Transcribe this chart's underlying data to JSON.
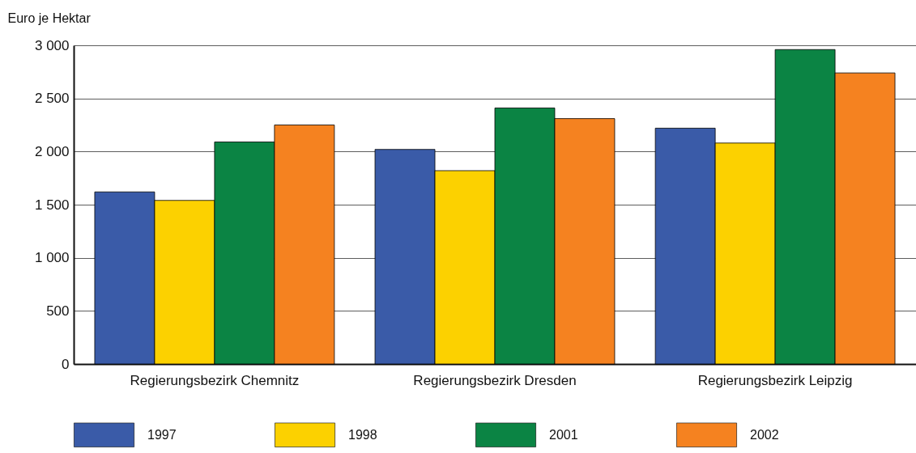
{
  "chart_data": {
    "type": "bar",
    "ylabel": "Euro je Hektar",
    "categories": [
      "Regierungsbezirk Chemnitz",
      "Regierungsbezirk Dresden",
      "Regierungsbezirk Leipzig"
    ],
    "series": [
      {
        "name": "1997",
        "color": "#3a5ba8",
        "values": [
          1620,
          2020,
          2220
        ]
      },
      {
        "name": "1998",
        "color": "#fcd100",
        "values": [
          1540,
          1820,
          2080
        ]
      },
      {
        "name": "2001",
        "color": "#0b8444",
        "values": [
          2090,
          2410,
          2960
        ]
      },
      {
        "name": "2002",
        "color": "#f58220",
        "values": [
          2250,
          2310,
          2740
        ]
      }
    ],
    "ylim": [
      0,
      3000
    ],
    "yticks": [
      0,
      500,
      {
        "value": 1000,
        "label": "1 000"
      },
      {
        "value": 1500,
        "label": "1 500"
      },
      {
        "value": 2000,
        "label": "2 000"
      },
      {
        "value": 2500,
        "label": "2 500"
      },
      {
        "value": 3000,
        "label": "3 000"
      }
    ],
    "grid": "y",
    "legend": "bottom"
  }
}
